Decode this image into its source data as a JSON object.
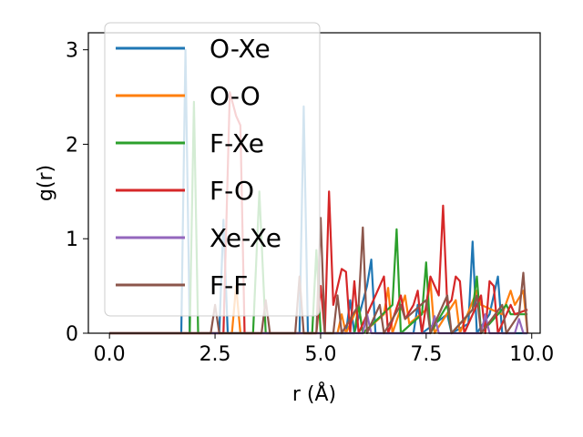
{
  "chart_data": {
    "type": "line",
    "xlabel": "r (Å)",
    "ylabel": "g(r)",
    "xlim": [
      -0.5,
      10.2
    ],
    "ylim": [
      0,
      3.18
    ],
    "xticks": [
      0.0,
      2.5,
      5.0,
      7.5,
      10.0
    ],
    "xtick_labels": [
      "0.0",
      "2.5",
      "5.0",
      "7.5",
      "10.0"
    ],
    "yticks": [
      0,
      1,
      2,
      3
    ],
    "ytick_labels": [
      "0",
      "1",
      "2",
      "3"
    ],
    "grid": false,
    "legend_position": "top-left",
    "series": [
      {
        "name": "O-Xe",
        "color": "#1f77b4",
        "points": [
          [
            0,
            0
          ],
          [
            1.7,
            0
          ],
          [
            1.8,
            3.0
          ],
          [
            1.9,
            0
          ],
          [
            2.6,
            0
          ],
          [
            2.7,
            1.2
          ],
          [
            2.8,
            0
          ],
          [
            4.5,
            0
          ],
          [
            4.6,
            2.4
          ],
          [
            4.7,
            0
          ],
          [
            5.6,
            0
          ],
          [
            5.7,
            0.35
          ],
          [
            5.8,
            0
          ],
          [
            6.1,
            0.5
          ],
          [
            6.2,
            0.78
          ],
          [
            6.3,
            0
          ],
          [
            7.2,
            0
          ],
          [
            7.3,
            0.3
          ],
          [
            7.4,
            0
          ],
          [
            8.0,
            0.2
          ],
          [
            8.1,
            0
          ],
          [
            8.5,
            0.1
          ],
          [
            8.6,
            0.97
          ],
          [
            8.7,
            0
          ],
          [
            9.0,
            0.2
          ],
          [
            9.2,
            0.6
          ],
          [
            9.3,
            0
          ],
          [
            9.9,
            0
          ]
        ]
      },
      {
        "name": "O-O",
        "color": "#ff7f0e",
        "points": [
          [
            0,
            0
          ],
          [
            2.9,
            0
          ],
          [
            3.0,
            0.5
          ],
          [
            3.1,
            0
          ],
          [
            5.4,
            0
          ],
          [
            5.5,
            0.2
          ],
          [
            5.6,
            0
          ],
          [
            5.9,
            0.3
          ],
          [
            6.0,
            0
          ],
          [
            6.5,
            0.2
          ],
          [
            6.6,
            0.48
          ],
          [
            6.7,
            0
          ],
          [
            7.0,
            0.4
          ],
          [
            7.1,
            0.1
          ],
          [
            7.5,
            0.25
          ],
          [
            7.6,
            0.55
          ],
          [
            7.7,
            0
          ],
          [
            8.2,
            0.35
          ],
          [
            8.3,
            0
          ],
          [
            8.7,
            0.45
          ],
          [
            8.8,
            0.3
          ],
          [
            9.3,
            0.2
          ],
          [
            9.5,
            0.45
          ],
          [
            9.6,
            0.3
          ],
          [
            9.8,
            0.45
          ],
          [
            9.9,
            0
          ]
        ]
      },
      {
        "name": "F-Xe",
        "color": "#2ca02c",
        "points": [
          [
            0,
            0
          ],
          [
            1.9,
            0
          ],
          [
            2.0,
            2.45
          ],
          [
            2.1,
            0
          ],
          [
            3.4,
            0
          ],
          [
            3.55,
            1.5
          ],
          [
            3.7,
            0
          ],
          [
            4.8,
            0
          ],
          [
            4.9,
            0.88
          ],
          [
            5.0,
            0
          ],
          [
            5.8,
            0
          ],
          [
            5.9,
            0.3
          ],
          [
            6.0,
            0
          ],
          [
            6.7,
            0.3
          ],
          [
            6.8,
            1.1
          ],
          [
            6.9,
            0
          ],
          [
            7.4,
            0.2
          ],
          [
            7.5,
            0.75
          ],
          [
            7.6,
            0
          ],
          [
            8.0,
            0.3
          ],
          [
            8.1,
            0
          ],
          [
            8.6,
            0.25
          ],
          [
            8.7,
            0.6
          ],
          [
            8.8,
            0
          ],
          [
            9.4,
            0.3
          ],
          [
            9.5,
            0.2
          ],
          [
            9.9,
            0.2
          ]
        ]
      },
      {
        "name": "F-O",
        "color": "#d62728",
        "points": [
          [
            0,
            0
          ],
          [
            2.7,
            0
          ],
          [
            2.85,
            2.55
          ],
          [
            3.0,
            2.3
          ],
          [
            3.1,
            2.2
          ],
          [
            3.2,
            0
          ],
          [
            4.9,
            0
          ],
          [
            5.0,
            0.5
          ],
          [
            5.1,
            0
          ],
          [
            5.2,
            1.5
          ],
          [
            5.3,
            0.3
          ],
          [
            5.5,
            0.68
          ],
          [
            5.6,
            0.65
          ],
          [
            5.7,
            0
          ],
          [
            5.8,
            0.55
          ],
          [
            5.9,
            0
          ],
          [
            6.5,
            0.6
          ],
          [
            6.6,
            0
          ],
          [
            6.9,
            0.4
          ],
          [
            7.0,
            0.15
          ],
          [
            7.2,
            0.3
          ],
          [
            7.3,
            0.45
          ],
          [
            7.4,
            0
          ],
          [
            7.6,
            0.6
          ],
          [
            7.8,
            0.4
          ],
          [
            7.9,
            1.35
          ],
          [
            8.0,
            0.3
          ],
          [
            8.1,
            0.35
          ],
          [
            8.2,
            0.6
          ],
          [
            8.3,
            0.55
          ],
          [
            8.4,
            0
          ],
          [
            8.7,
            0.3
          ],
          [
            8.8,
            0.4
          ],
          [
            8.9,
            0
          ],
          [
            9.0,
            0.55
          ],
          [
            9.1,
            0.5
          ],
          [
            9.2,
            0
          ],
          [
            9.5,
            0.3
          ],
          [
            9.6,
            0.2
          ],
          [
            9.9,
            0.25
          ]
        ]
      },
      {
        "name": "Xe-Xe",
        "color": "#9467bd",
        "points": [
          [
            0,
            0
          ],
          [
            6.0,
            0
          ],
          [
            6.1,
            0.2
          ],
          [
            6.2,
            0
          ],
          [
            7.6,
            0
          ],
          [
            7.7,
            0.18
          ],
          [
            7.8,
            0
          ],
          [
            8.8,
            0
          ],
          [
            8.9,
            0.2
          ],
          [
            9.0,
            0
          ],
          [
            9.6,
            0
          ],
          [
            9.7,
            0.15
          ],
          [
            9.8,
            0
          ],
          [
            9.9,
            0
          ]
        ]
      },
      {
        "name": "F-F",
        "color": "#8c564b",
        "points": [
          [
            0,
            0
          ],
          [
            2.4,
            0
          ],
          [
            2.5,
            0.3
          ],
          [
            2.6,
            0
          ],
          [
            3.6,
            0
          ],
          [
            3.7,
            0.35
          ],
          [
            3.8,
            0
          ],
          [
            4.4,
            0
          ],
          [
            4.5,
            0.6
          ],
          [
            4.6,
            0
          ],
          [
            4.9,
            0
          ],
          [
            5.0,
            1.22
          ],
          [
            5.1,
            0
          ],
          [
            5.3,
            0
          ],
          [
            5.4,
            0.4
          ],
          [
            5.5,
            0
          ],
          [
            5.9,
            0.3
          ],
          [
            6.0,
            1.12
          ],
          [
            6.1,
            0
          ],
          [
            6.4,
            0.3
          ],
          [
            6.5,
            0
          ],
          [
            6.9,
            0.3
          ],
          [
            7.0,
            0.15
          ],
          [
            7.5,
            0.35
          ],
          [
            7.6,
            0
          ],
          [
            8.0,
            0.4
          ],
          [
            8.1,
            0
          ],
          [
            8.6,
            0.25
          ],
          [
            8.7,
            0.4
          ],
          [
            8.8,
            0
          ],
          [
            9.3,
            0.3
          ],
          [
            9.4,
            0
          ],
          [
            9.7,
            0.2
          ],
          [
            9.8,
            0.64
          ],
          [
            9.9,
            0
          ]
        ]
      }
    ]
  }
}
